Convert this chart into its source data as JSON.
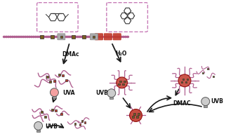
{
  "bg_color": "#ffffff",
  "arrow_color": "#1a1a1a",
  "text_labels": {
    "dmac_left": "DMAc",
    "uva": "UVA",
    "uvb_left": "UVB",
    "h2o": "H₂O",
    "dmac_right": "DMAC",
    "uvb_right1": "UVB",
    "uvb_right2": "UVB"
  },
  "box_color": "#c87cb8",
  "chain_purple": "#b06090",
  "chain_dark": "#704040",
  "red_block": "#c0392b",
  "brown_block": "#7a5c1e",
  "fig_width": 3.22,
  "fig_height": 1.91,
  "dpi": 100
}
